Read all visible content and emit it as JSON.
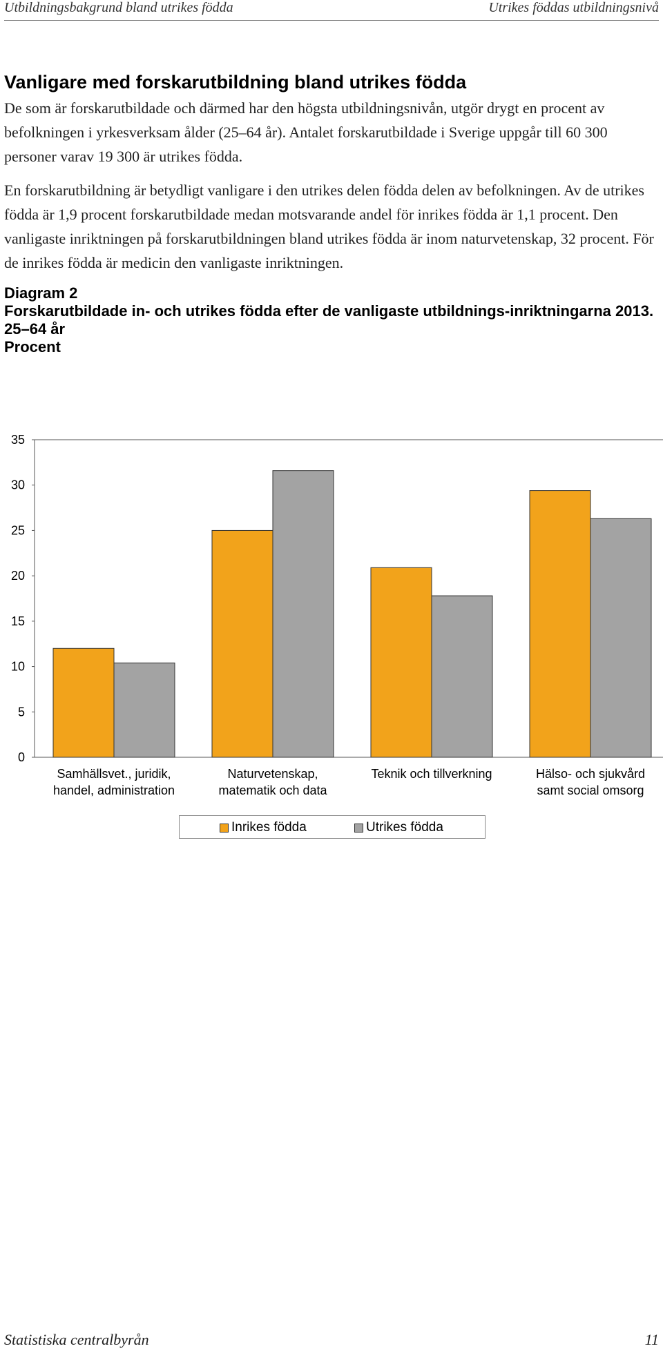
{
  "header": {
    "left": "Utbildningsbakgrund bland utrikes födda",
    "right": "Utrikes föddas utbildningsnivå"
  },
  "section": {
    "title": "Vanligare med forskarutbildning bland utrikes födda",
    "paragraphs": [
      "De som är forskarutbildade och därmed har den högsta utbildningsnivån, utgör drygt en procent av befolkningen i yrkesverksam ålder (25–64 år). Antalet forskarutbildade i Sverige uppgår till 60 300 personer varav 19 300 är utrikes födda.",
      "En forskarutbildning är betydligt vanligare i den utrikes delen födda delen av befolkningen. Av de utrikes födda är 1,9 procent forskarutbildade medan motsvarande andel för inrikes födda är 1,1 procent. Den vanligaste inriktningen på forskarutbildningen bland utrikes födda är inom naturvetenskap, 32 procent. För de inrikes födda är medicin den vanligaste inriktningen."
    ]
  },
  "diagram": {
    "label": "Diagram 2",
    "title": "Forskarutbildade in- och utrikes födda efter de vanligaste utbildnings-inriktningarna 2013. 25–64 år",
    "unit": "Procent"
  },
  "chart_data": {
    "type": "bar",
    "categories": [
      [
        "Samhällsvet., juridik,",
        "handel, administration"
      ],
      [
        "Naturvetenskap,",
        "matematik och data"
      ],
      [
        "Teknik och tillverkning"
      ],
      [
        "Hälso- och sjukvård",
        "samt social omsorg"
      ]
    ],
    "series": [
      {
        "name": "Inrikes födda",
        "color": "#F2A31B",
        "values": [
          12.0,
          25.0,
          20.9,
          29.4
        ]
      },
      {
        "name": "Utrikes födda",
        "color": "#A3A3A3",
        "values": [
          10.4,
          31.6,
          17.8,
          26.3
        ]
      }
    ],
    "ylim": [
      0,
      35
    ],
    "yticks": [
      0,
      5,
      10,
      15,
      20,
      25,
      30,
      35
    ],
    "grid": false,
    "legend": "bottom"
  },
  "footer": {
    "left": "Statistiska centralbyrån",
    "right": "11"
  }
}
